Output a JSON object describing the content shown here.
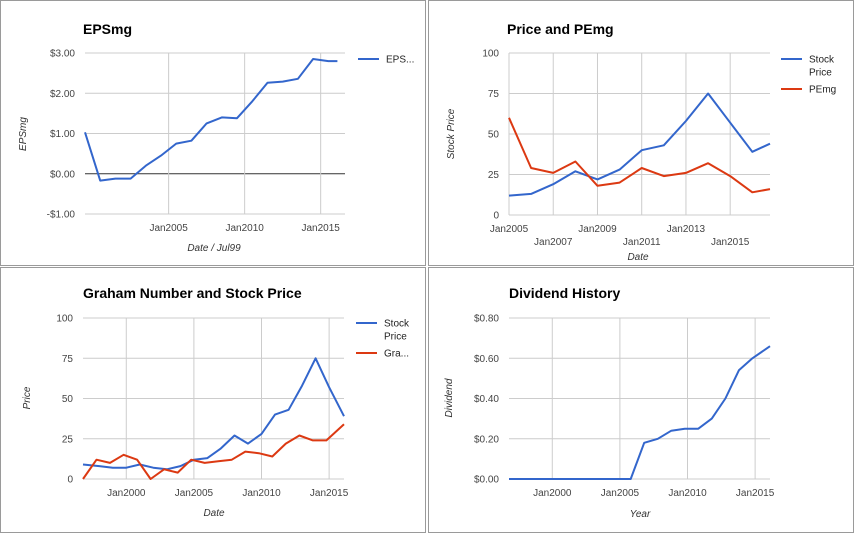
{
  "colors": {
    "blue": "#3366cc",
    "red": "#dc3912",
    "grid": "#cccccc",
    "zero": "#333333"
  },
  "chart_data": [
    {
      "type": "line",
      "title": "EPSmg",
      "xlabel": "Date / Jul99",
      "ylabel": "EPSmg",
      "ylim": [
        -1,
        3
      ],
      "yticks": [
        -1,
        0,
        1,
        2,
        3
      ],
      "ytick_labels": [
        "-$1.00",
        "$0.00",
        "$1.00",
        "$2.00",
        "$3.00"
      ],
      "xlim": [
        1999.5,
        2016.6
      ],
      "xticks": [
        2005,
        2010,
        2015
      ],
      "xtick_labels": [
        "Jan2005",
        "Jan2010",
        "Jan2015"
      ],
      "grid": true,
      "zero_line": true,
      "legend": "right",
      "series": [
        {
          "name": "EPS...",
          "color": "#3366cc",
          "x": [
            1999.5,
            2000.5,
            2001.5,
            2002.5,
            2003.5,
            2004.5,
            2005.5,
            2006.5,
            2007.5,
            2008.5,
            2009.5,
            2010.5,
            2011.5,
            2012.5,
            2013.5,
            2014.5,
            2015.5,
            2016.1
          ],
          "y": [
            1.03,
            -0.17,
            -0.12,
            -0.12,
            0.2,
            0.45,
            0.75,
            0.82,
            1.25,
            1.4,
            1.38,
            1.8,
            2.26,
            2.29,
            2.36,
            2.85,
            2.8,
            2.8
          ]
        }
      ]
    },
    {
      "type": "line",
      "title": "Price and PEmg",
      "xlabel": "Date",
      "ylabel": "Stock Price",
      "ylim": [
        0,
        100
      ],
      "yticks": [
        0,
        25,
        50,
        75,
        100
      ],
      "ytick_labels": [
        "0",
        "25",
        "50",
        "75",
        "100"
      ],
      "xlim": [
        2005,
        2016.8
      ],
      "xticks": [
        2005,
        2007,
        2009,
        2011,
        2013,
        2015
      ],
      "xtick_labels": [
        "Jan2005",
        "Jan2007",
        "Jan2009",
        "Jan2011",
        "Jan2013",
        "Jan2015"
      ],
      "grid": true,
      "legend": "right",
      "series": [
        {
          "name": "Stock Price",
          "color": "#3366cc",
          "x": [
            2005,
            2006,
            2007,
            2008,
            2009,
            2010,
            2011,
            2012,
            2013,
            2014,
            2015,
            2016,
            2016.8
          ],
          "y": [
            12,
            13,
            19,
            27,
            22,
            28,
            40,
            43,
            58,
            75,
            57,
            39,
            44
          ]
        },
        {
          "name": "PEmg",
          "color": "#dc3912",
          "x": [
            2005,
            2006,
            2007,
            2008,
            2009,
            2010,
            2011,
            2012,
            2013,
            2014,
            2015,
            2016,
            2016.8
          ],
          "y": [
            60,
            29,
            26,
            33,
            18,
            20,
            29,
            24,
            26,
            32,
            24,
            14,
            16
          ]
        }
      ]
    },
    {
      "type": "line",
      "title": "Graham Number and Stock Price",
      "xlabel": "Date",
      "ylabel": "Price",
      "ylim": [
        0,
        100
      ],
      "yticks": [
        0,
        25,
        50,
        75,
        100
      ],
      "ytick_labels": [
        "0",
        "25",
        "50",
        "75",
        "100"
      ],
      "xlim": [
        1996.8,
        2016.1
      ],
      "xticks": [
        2000,
        2005,
        2010,
        2015
      ],
      "xtick_labels": [
        "Jan2000",
        "Jan2005",
        "Jan2010",
        "Jan2015"
      ],
      "grid": true,
      "legend": "right",
      "series": [
        {
          "name": "Stock Price",
          "color": "#3366cc",
          "x": [
            1996.8,
            1998,
            1999,
            2000,
            2001,
            2002,
            2003,
            2004,
            2005,
            2006,
            2007,
            2008,
            2009,
            2010,
            2011,
            2012,
            2013,
            2014,
            2015,
            2016.1
          ],
          "y": [
            9,
            8,
            7,
            7,
            9,
            7,
            6,
            8,
            12,
            13,
            19,
            27,
            22,
            28,
            40,
            43,
            58,
            75,
            57,
            39
          ]
        },
        {
          "name": "Gra...",
          "color": "#dc3912",
          "x": [
            1996.8,
            1997.8,
            1998.8,
            1999.8,
            2000.8,
            2001.8,
            2002.8,
            2003.8,
            2004.8,
            2005.8,
            2006.8,
            2007.8,
            2008.8,
            2009.8,
            2010.8,
            2011.8,
            2012.8,
            2013.8,
            2014.8,
            2016.1
          ],
          "y": [
            0,
            12,
            10,
            15,
            12,
            0,
            6,
            4,
            12,
            10,
            11,
            12,
            17,
            16,
            14,
            22,
            27,
            24,
            24,
            34
          ]
        }
      ]
    },
    {
      "type": "line",
      "title": "Dividend History",
      "xlabel": "Year",
      "ylabel": "Dividend",
      "ylim": [
        0,
        0.8
      ],
      "yticks": [
        0,
        0.2,
        0.4,
        0.6,
        0.8
      ],
      "ytick_labels": [
        "$0.00",
        "$0.20",
        "$0.40",
        "$0.60",
        "$0.80"
      ],
      "xlim": [
        1996.8,
        2016.1
      ],
      "xticks": [
        2000,
        2005,
        2010,
        2015
      ],
      "xtick_labels": [
        "Jan2000",
        "Jan2005",
        "Jan2010",
        "Jan2015"
      ],
      "grid": true,
      "legend": "none",
      "series": [
        {
          "name": "",
          "color": "#3366cc",
          "x": [
            1996.8,
            2005.8,
            2006.8,
            2007.8,
            2008.8,
            2009.8,
            2010.8,
            2011.8,
            2012.8,
            2013.8,
            2014.8,
            2016.1
          ],
          "y": [
            0,
            0,
            0.18,
            0.2,
            0.24,
            0.25,
            0.25,
            0.3,
            0.4,
            0.54,
            0.6,
            0.66
          ]
        }
      ]
    }
  ]
}
